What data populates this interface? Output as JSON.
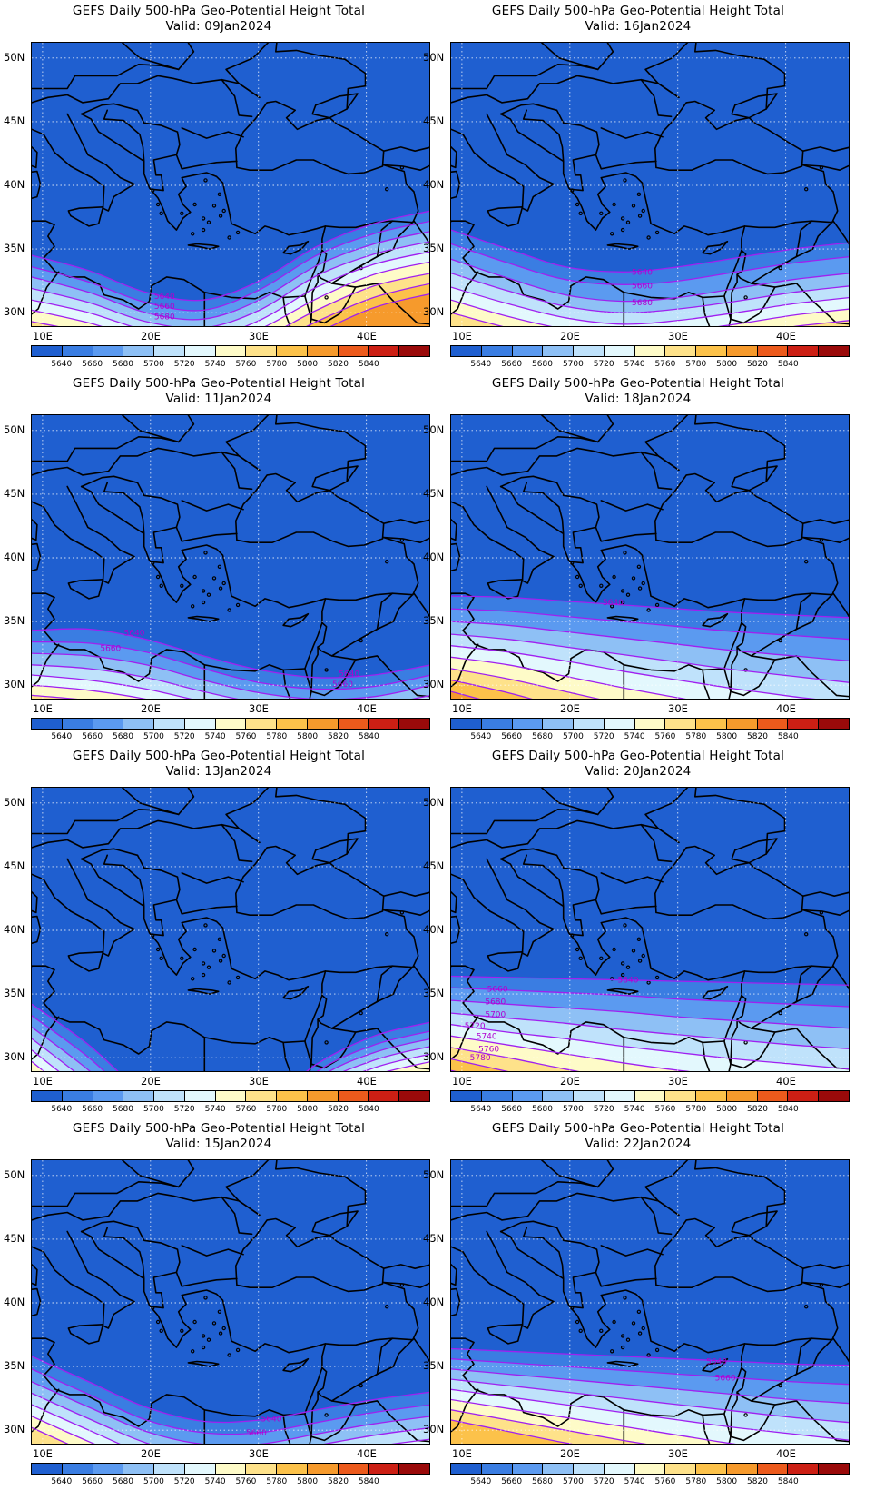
{
  "panel_title": "GEFS Daily 500-hPa Geo-Potential Height Total",
  "lat_labels": [
    "50N",
    "45N",
    "40N",
    "35N",
    "30N"
  ],
  "lon_labels": [
    "10E",
    "20E",
    "30E",
    "40E"
  ],
  "colorbar": {
    "colors": [
      "#1f5fd0",
      "#3a7de2",
      "#5b9af0",
      "#8ec0f5",
      "#bfe2fb",
      "#e3f8fd",
      "#fefbc8",
      "#fee28a",
      "#fcc24a",
      "#f69a2c",
      "#ec5a1c",
      "#cc1f14",
      "#9a0a0a"
    ],
    "labels": [
      "5640",
      "5660",
      "5680",
      "5700",
      "5720",
      "5740",
      "5760",
      "5780",
      "5800",
      "5820",
      "5840"
    ]
  },
  "panels": [
    {
      "valid": "Valid: 09Jan2024",
      "contours": [
        {
          "value": "5640",
          "lat": [
            34.5,
            33.3,
            31.6,
            31.0,
            32.5,
            35.2,
            37.0,
            38.0
          ]
        },
        {
          "value": "5660",
          "lat": [
            33.6,
            32.4,
            30.8,
            30.2,
            31.8,
            34.5,
            36.2,
            37.2
          ]
        },
        {
          "value": "5680",
          "lat": [
            32.8,
            31.6,
            30.0,
            29.5,
            31.0,
            33.7,
            35.4,
            36.4
          ]
        },
        {
          "value": "5700",
          "lat": [
            31.9,
            30.8,
            29.3,
            28.8,
            30.2,
            32.9,
            34.6,
            35.6
          ]
        },
        {
          "value": "5720",
          "lat": [
            31.0,
            30.0,
            28.6,
            28.0,
            29.4,
            32.0,
            33.8,
            34.8
          ]
        },
        {
          "value": "5740",
          "lat": [
            30.2,
            29.2,
            27.9,
            27.3,
            28.7,
            31.1,
            33.0,
            34.0
          ]
        },
        {
          "value": "5760",
          "lat": [
            29.3,
            28.4,
            27.2,
            26.6,
            27.9,
            30.2,
            32.1,
            33.1
          ]
        },
        {
          "value": "5780",
          "lat": [
            28.5,
            27.6,
            26.5,
            25.9,
            27.1,
            29.3,
            31.2,
            32.3
          ]
        },
        {
          "value": "5800",
          "lat": [
            27.7,
            26.8,
            25.8,
            25.2,
            26.3,
            28.4,
            30.4,
            31.5
          ]
        }
      ],
      "labels": [
        {
          "text": "5640",
          "lon": 21.3,
          "lat": 31.3
        },
        {
          "text": "5660",
          "lon": 21.3,
          "lat": 30.5
        },
        {
          "text": "5680",
          "lon": 21.3,
          "lat": 29.7
        }
      ]
    },
    {
      "valid": "Valid: 16Jan2024",
      "contours": [
        {
          "value": "5640",
          "lat": [
            36.5,
            35.0,
            33.6,
            33.2,
            33.6,
            34.3,
            35.0,
            35.5
          ]
        },
        {
          "value": "5660",
          "lat": [
            35.4,
            33.9,
            32.6,
            32.2,
            32.5,
            33.2,
            33.9,
            34.4
          ]
        },
        {
          "value": "5680",
          "lat": [
            34.2,
            32.7,
            31.4,
            30.9,
            31.2,
            31.9,
            32.6,
            33.1
          ]
        },
        {
          "value": "5700",
          "lat": [
            33.1,
            31.7,
            30.5,
            30.0,
            30.3,
            30.9,
            31.6,
            32.1
          ]
        },
        {
          "value": "5720",
          "lat": [
            32.0,
            30.7,
            29.6,
            29.1,
            29.4,
            30.0,
            30.7,
            31.2
          ]
        },
        {
          "value": "5740",
          "lat": [
            31.0,
            29.7,
            28.7,
            28.2,
            28.5,
            29.1,
            29.8,
            30.3
          ]
        },
        {
          "value": "5760",
          "lat": [
            30.0,
            28.8,
            27.9,
            27.4,
            27.6,
            28.2,
            28.9,
            29.4
          ]
        }
      ],
      "labels": [
        {
          "text": "5640",
          "lon": 26.7,
          "lat": 33.2
        },
        {
          "text": "5660",
          "lon": 26.7,
          "lat": 32.1
        },
        {
          "text": "5680",
          "lon": 26.7,
          "lat": 30.8
        }
      ]
    },
    {
      "valid": "Valid: 11Jan2024",
      "contours": [
        {
          "value": "5640",
          "lat": [
            34.3,
            34.4,
            33.6,
            32.3,
            31.2,
            30.6,
            30.8,
            31.6
          ]
        },
        {
          "value": "5660",
          "lat": [
            33.4,
            33.3,
            32.6,
            31.3,
            30.2,
            29.7,
            29.9,
            30.8
          ]
        },
        {
          "value": "5680",
          "lat": [
            32.5,
            32.3,
            31.6,
            30.4,
            29.4,
            28.9,
            29.1,
            30.0
          ]
        },
        {
          "value": "5700",
          "lat": [
            31.6,
            31.3,
            30.6,
            29.5,
            28.6,
            28.2,
            28.4,
            29.2
          ]
        },
        {
          "value": "5720",
          "lat": [
            30.8,
            30.4,
            29.7,
            28.7,
            27.9,
            27.5,
            27.7,
            28.4
          ]
        },
        {
          "value": "5740",
          "lat": [
            30.0,
            29.6,
            28.9,
            27.9,
            27.2,
            26.8,
            27.0,
            27.7
          ]
        },
        {
          "value": "5760",
          "lat": [
            29.2,
            28.8,
            28.1,
            27.2,
            26.5,
            26.1,
            26.3,
            27.0
          ]
        }
      ],
      "labels": [
        {
          "text": "5640",
          "lon": 18.5,
          "lat": 34.1
        },
        {
          "text": "5660",
          "lon": 16.3,
          "lat": 32.9
        },
        {
          "text": "5640",
          "lon": 38.4,
          "lat": 30.9
        },
        {
          "text": "5660",
          "lon": 37.8,
          "lat": 30.1
        }
      ]
    },
    {
      "valid": "Valid: 18Jan2024",
      "contours": [
        {
          "value": "5640",
          "lat": [
            37.0,
            36.9,
            36.6,
            36.3,
            36.0,
            35.7,
            35.5,
            35.3
          ]
        },
        {
          "value": "5660",
          "lat": [
            36.0,
            35.8,
            35.4,
            35.0,
            34.6,
            34.2,
            33.9,
            33.6
          ]
        },
        {
          "value": "5680",
          "lat": [
            35.0,
            34.7,
            34.2,
            33.7,
            33.2,
            32.7,
            32.3,
            31.9
          ]
        },
        {
          "value": "5700",
          "lat": [
            34.0,
            33.6,
            33.0,
            32.4,
            31.8,
            31.2,
            30.7,
            30.2
          ]
        },
        {
          "value": "5720",
          "lat": [
            33.1,
            32.6,
            31.9,
            31.1,
            30.4,
            29.7,
            29.1,
            28.6
          ]
        },
        {
          "value": "5740",
          "lat": [
            32.2,
            31.6,
            30.7,
            29.8,
            29.0,
            28.2,
            27.6,
            27.0
          ]
        },
        {
          "value": "5760",
          "lat": [
            31.3,
            30.5,
            29.5,
            28.5,
            27.6,
            26.8,
            26.1,
            25.5
          ]
        },
        {
          "value": "5780",
          "lat": [
            30.4,
            29.4,
            28.2,
            27.2,
            26.2,
            25.4,
            24.7,
            24.1
          ]
        },
        {
          "value": "5800",
          "lat": [
            29.5,
            28.3,
            27.0,
            25.9,
            24.9,
            24.0,
            23.3,
            22.7
          ]
        }
      ],
      "labels": [
        {
          "text": "5640",
          "lon": 24.0,
          "lat": 36.5
        }
      ]
    },
    {
      "valid": "Valid: 13Jan2024",
      "contours": [
        {
          "value": "5640",
          "lat": [
            34.2,
            31.0,
            27.0,
            24.5,
            26.0,
            29.5,
            31.7,
            32.8
          ]
        },
        {
          "value": "5660",
          "lat": [
            33.3,
            30.0,
            26.0,
            23.5,
            25.0,
            28.9,
            31.0,
            32.1
          ]
        },
        {
          "value": "5680",
          "lat": [
            32.4,
            29.0,
            25.0,
            22.5,
            24.0,
            28.3,
            30.4,
            31.5
          ]
        },
        {
          "value": "5700",
          "lat": [
            31.5,
            28.0,
            24.0,
            21.5,
            23.0,
            27.7,
            29.8,
            30.9
          ]
        },
        {
          "value": "5720",
          "lat": [
            30.6,
            27.0,
            23.0,
            20.5,
            22.0,
            27.1,
            29.2,
            30.3
          ]
        },
        {
          "value": "5740",
          "lat": [
            29.7,
            26.0,
            22.0,
            19.5,
            21.0,
            26.5,
            28.6,
            29.7
          ]
        }
      ],
      "labels": []
    },
    {
      "valid": "Valid: 20Jan2024",
      "contours": [
        {
          "value": "5640",
          "lat": [
            36.4,
            36.3,
            36.2,
            36.1,
            36.0,
            35.9,
            35.8,
            35.7
          ]
        },
        {
          "value": "5660",
          "lat": [
            35.5,
            35.3,
            35.1,
            34.9,
            34.6,
            34.4,
            34.2,
            34.0
          ]
        },
        {
          "value": "5680",
          "lat": [
            34.5,
            34.2,
            33.9,
            33.6,
            33.2,
            32.9,
            32.6,
            32.3
          ]
        },
        {
          "value": "5700",
          "lat": [
            33.5,
            33.1,
            32.7,
            32.2,
            31.8,
            31.4,
            31.0,
            30.7
          ]
        },
        {
          "value": "5720",
          "lat": [
            32.6,
            32.0,
            31.5,
            30.9,
            30.4,
            29.9,
            29.5,
            29.1
          ]
        },
        {
          "value": "5740",
          "lat": [
            31.7,
            31.0,
            30.3,
            29.6,
            29.0,
            28.5,
            28.0,
            27.6
          ]
        },
        {
          "value": "5760",
          "lat": [
            30.8,
            30.0,
            29.1,
            28.3,
            27.6,
            27.0,
            26.5,
            26.1
          ]
        },
        {
          "value": "5780",
          "lat": [
            29.9,
            28.9,
            27.9,
            27.0,
            26.2,
            25.5,
            25.0,
            24.6
          ]
        },
        {
          "value": "5800",
          "lat": [
            29.0,
            27.9,
            26.8,
            25.8,
            24.9,
            24.1,
            23.6,
            23.2
          ]
        }
      ],
      "labels": [
        {
          "text": "5660",
          "lon": 13.3,
          "lat": 35.4
        },
        {
          "text": "5680",
          "lon": 13.1,
          "lat": 34.4
        },
        {
          "text": "5700",
          "lon": 13.1,
          "lat": 33.4
        },
        {
          "text": "5720",
          "lon": 11.2,
          "lat": 32.5
        },
        {
          "text": "5740",
          "lon": 12.3,
          "lat": 31.7
        },
        {
          "text": "5760",
          "lon": 12.5,
          "lat": 30.7
        },
        {
          "text": "5780",
          "lon": 11.7,
          "lat": 30.0
        },
        {
          "text": "5640",
          "lon": 25.4,
          "lat": 36.1
        }
      ]
    },
    {
      "valid": "Valid: 15Jan2024",
      "contours": [
        {
          "value": "5640",
          "lat": [
            35.8,
            33.8,
            31.8,
            30.7,
            30.8,
            31.6,
            32.4,
            33.0
          ]
        },
        {
          "value": "5660",
          "lat": [
            34.8,
            32.8,
            30.8,
            29.8,
            29.8,
            30.6,
            31.4,
            32.0
          ]
        },
        {
          "value": "5680",
          "lat": [
            33.8,
            31.8,
            29.9,
            28.9,
            28.9,
            29.7,
            30.5,
            31.1
          ]
        },
        {
          "value": "5700",
          "lat": [
            32.9,
            30.9,
            29.0,
            28.0,
            28.0,
            28.8,
            29.6,
            30.2
          ]
        },
        {
          "value": "5720",
          "lat": [
            32.0,
            30.0,
            28.1,
            27.1,
            27.1,
            27.9,
            28.7,
            29.3
          ]
        },
        {
          "value": "5740",
          "lat": [
            31.1,
            29.1,
            27.3,
            26.3,
            26.3,
            27.1,
            27.9,
            28.5
          ]
        },
        {
          "value": "5760",
          "lat": [
            30.2,
            28.2,
            26.5,
            25.5,
            25.5,
            26.3,
            27.1,
            27.7
          ]
        }
      ],
      "labels": [
        {
          "text": "5640",
          "lon": 31.2,
          "lat": 30.9
        },
        {
          "text": "5660",
          "lon": 29.8,
          "lat": 29.8
        }
      ]
    },
    {
      "valid": "Valid: 22Jan2024",
      "contours": [
        {
          "value": "5640",
          "lat": [
            36.4,
            36.2,
            36.0,
            35.8,
            35.6,
            35.4,
            35.2,
            35.1
          ]
        },
        {
          "value": "5660",
          "lat": [
            35.6,
            35.3,
            35.0,
            34.7,
            34.4,
            34.1,
            33.8,
            33.6
          ]
        },
        {
          "value": "5680",
          "lat": [
            34.8,
            34.4,
            34.0,
            33.6,
            33.2,
            32.8,
            32.4,
            32.1
          ]
        },
        {
          "value": "5700",
          "lat": [
            34.0,
            33.5,
            33.0,
            32.5,
            32.0,
            31.5,
            31.0,
            30.6
          ]
        },
        {
          "value": "5720",
          "lat": [
            33.2,
            32.6,
            32.0,
            31.4,
            30.8,
            30.2,
            29.7,
            29.2
          ]
        },
        {
          "value": "5740",
          "lat": [
            32.4,
            31.7,
            31.0,
            30.3,
            29.6,
            28.9,
            28.4,
            27.9
          ]
        },
        {
          "value": "5760",
          "lat": [
            31.6,
            30.8,
            30.0,
            29.2,
            28.5,
            27.8,
            27.2,
            26.7
          ]
        },
        {
          "value": "5780",
          "lat": [
            30.8,
            29.9,
            29.0,
            28.2,
            27.4,
            26.7,
            26.1,
            25.6
          ]
        }
      ],
      "labels": [
        {
          "text": "5640",
          "lon": 33.6,
          "lat": 35.4
        },
        {
          "text": "5660",
          "lon": 34.4,
          "lat": 34.1
        }
      ]
    }
  ]
}
